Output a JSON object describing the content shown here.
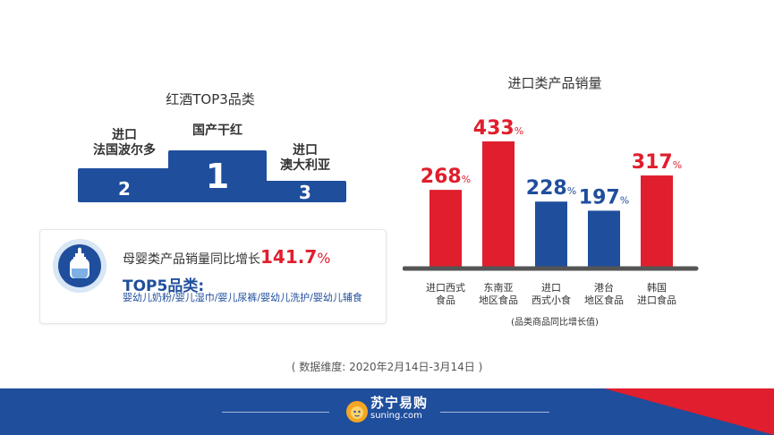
{
  "colors": {
    "brand_blue": "#1f4e9c",
    "brand_red": "#e01e2d",
    "baseline": "#555555",
    "logo_yellow": "#f5a623"
  },
  "wine": {
    "title": "红酒TOP3品类",
    "podium": [
      {
        "rank": "2",
        "label_line1": "进口",
        "label_line2": "法国波尔多"
      },
      {
        "rank": "1",
        "label_line1": "国产干红",
        "label_line2": ""
      },
      {
        "rank": "3",
        "label_line1": "进口",
        "label_line2": "澳大利亚"
      }
    ]
  },
  "infant": {
    "headline": "母婴类产品销量同比增长",
    "growth_big": "141.7",
    "growth_unit": "%",
    "top5_title": "TOP5品类:",
    "top5_items": "婴幼儿奶粉/婴儿湿巾/婴儿尿裤/婴幼儿洗护/婴幼儿辅食",
    "icon": "baby-bottle-icon"
  },
  "chart_data": {
    "type": "bar",
    "title": "进口类产品销量",
    "categories": [
      [
        "进口西式",
        "食品"
      ],
      [
        "东南亚",
        "地区食品"
      ],
      [
        "进口",
        "西式小食"
      ],
      [
        "港台",
        "地区食品"
      ],
      [
        "韩国",
        "进口食品"
      ]
    ],
    "values": [
      268,
      433,
      228,
      197,
      317
    ],
    "value_labels": [
      "268",
      "433",
      "228",
      "197",
      "317"
    ],
    "unit": "%",
    "bar_colors": [
      "#e01e2d",
      "#e01e2d",
      "#1f4e9c",
      "#1f4e9c",
      "#e01e2d"
    ],
    "ylim": [
      0,
      433
    ],
    "xlabel": "(品类商品同比增长值)",
    "ylabel": "",
    "grid": false
  },
  "source_note": "( 数据维度: 2020年2月14日-3月14日 )",
  "footer": {
    "logo_cn": "苏宁易购",
    "logo_en": "suning.com",
    "logo_icon": "lion-icon"
  }
}
